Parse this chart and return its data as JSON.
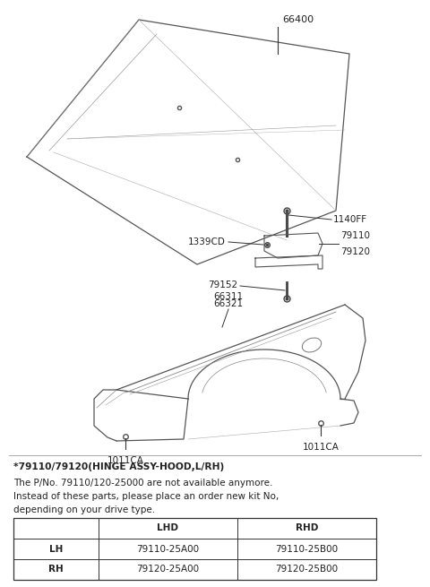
{
  "bg_color": "#ffffff",
  "parts": {
    "hood_label": "66400",
    "hinge_bolt_label": "1140FF",
    "hinge_cd_label": "1339CD",
    "hinge_label1": "79110",
    "hinge_label2": "79120",
    "bolt2_label": "79152",
    "fender_top_label1": "66311",
    "fender_top_label2": "66321",
    "fender_bolt_label": "1011CA"
  },
  "note_title": "*79110/79120(HINGE ASSY-HOOD,L/RH)",
  "note_line1": "The P/No. 79110/120-25000 are not available anymore.",
  "note_line2": "Instead of these parts, please place an order new kit No,",
  "note_line3": "depending on your drive type.",
  "table": {
    "header": [
      "",
      "LHD",
      "RHD"
    ],
    "rows": [
      [
        "LH",
        "79110-25A00",
        "79110-25B00"
      ],
      [
        "RH",
        "79120-25A00",
        "79120-25B00"
      ]
    ]
  }
}
